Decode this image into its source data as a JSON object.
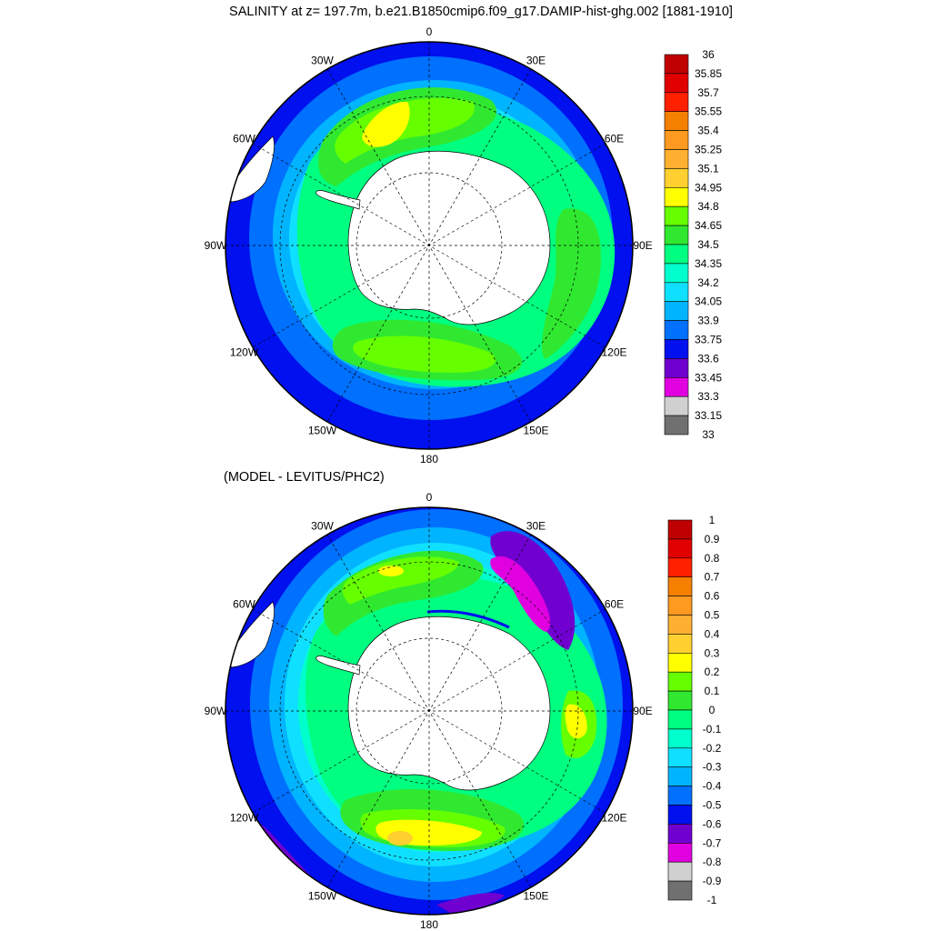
{
  "title": "SALINITY at z= 197.7m, b.e21.B1850cmip6.f09_g17.DAMIP-hist-ghg.002 [1881-1910]",
  "subtitle": "(MODEL - LEVITUS/PHC2)",
  "projection": "south-polar-stereographic",
  "longitude_labels": [
    {
      "text": "0",
      "lon": 0
    },
    {
      "text": "30E",
      "lon": 30
    },
    {
      "text": "60E",
      "lon": 60
    },
    {
      "text": "90E",
      "lon": 90
    },
    {
      "text": "120E",
      "lon": 120
    },
    {
      "text": "150E",
      "lon": 150
    },
    {
      "text": "180",
      "lon": 180
    },
    {
      "text": "150W",
      "lon": -150
    },
    {
      "text": "120W",
      "lon": -120
    },
    {
      "text": "90W",
      "lon": -90
    },
    {
      "text": "60W",
      "lon": -60
    },
    {
      "text": "30W",
      "lon": -30
    }
  ],
  "top_colorbar": {
    "labels": [
      "36",
      "35.85",
      "35.7",
      "35.55",
      "35.4",
      "35.25",
      "35.1",
      "34.95",
      "34.8",
      "34.65",
      "34.5",
      "34.35",
      "34.2",
      "34.05",
      "33.9",
      "33.75",
      "33.6",
      "33.45",
      "33.3",
      "33.15",
      "33"
    ],
    "colors": [
      "#c00000",
      "#e00000",
      "#ff2000",
      "#f58000",
      "#ff9a20",
      "#ffb030",
      "#ffd030",
      "#ffff00",
      "#66ff00",
      "#30e830",
      "#00ff80",
      "#00ffcc",
      "#10e0ff",
      "#00b4ff",
      "#0070ff",
      "#0010ee",
      "#7000d0",
      "#e000e0",
      "#d0d0d0",
      "#707070"
    ]
  },
  "bottom_colorbar": {
    "labels": [
      "1",
      "0.9",
      "0.8",
      "0.7",
      "0.6",
      "0.5",
      "0.4",
      "0.3",
      "0.2",
      "0.1",
      "0",
      "-0.1",
      "-0.2",
      "-0.3",
      "-0.4",
      "-0.5",
      "-0.6",
      "-0.7",
      "-0.8",
      "-0.9",
      "-1"
    ],
    "colors": [
      "#c00000",
      "#e00000",
      "#ff2000",
      "#f58000",
      "#ff9a20",
      "#ffb030",
      "#ffd030",
      "#ffff00",
      "#66ff00",
      "#30e830",
      "#00ff80",
      "#00ffcc",
      "#10e0ff",
      "#00b4ff",
      "#0070ff",
      "#0010ee",
      "#7000d0",
      "#e000e0",
      "#d0d0d0",
      "#707070"
    ]
  },
  "map_colors": {
    "open_ocean": "#0010ee",
    "ocean_mid": "#0070ff",
    "ocean_light": "#00b4ff",
    "cyan": "#10e0ff",
    "aqua": "#00ffcc",
    "green": "#30e830",
    "lime": "#66ff00",
    "yellow": "#ffff00",
    "gold": "#ffd030",
    "purple": "#7000d0",
    "magenta": "#e000e0",
    "land": "#ffffff"
  }
}
